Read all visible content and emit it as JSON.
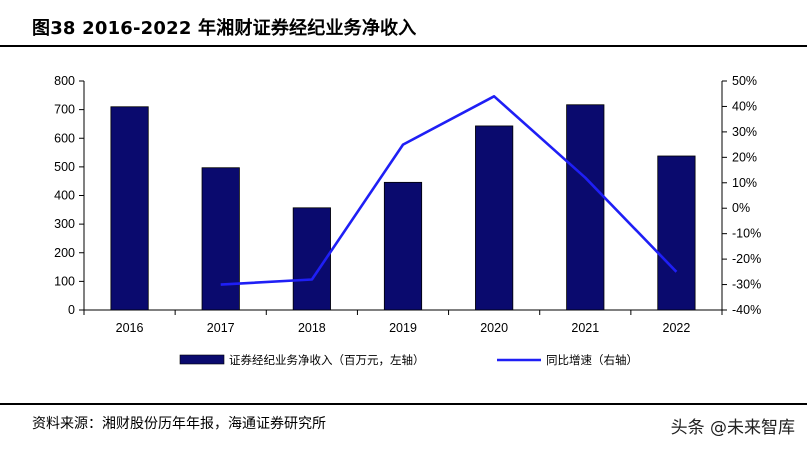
{
  "header": {
    "title": "图38 2016-2022 年湘财证券经纪业务净收入"
  },
  "chart_data": {
    "type": "bar",
    "categories": [
      "2016",
      "2017",
      "2018",
      "2019",
      "2020",
      "2021",
      "2022"
    ],
    "series": [
      {
        "name": "证券经纪业务净收入（百万元，左轴）",
        "type": "bar",
        "axis": "left",
        "color": "#0a0a6e",
        "values": [
          710,
          497,
          357,
          446,
          643,
          717,
          538
        ]
      },
      {
        "name": "同比增速（右轴）",
        "type": "line",
        "axis": "right",
        "color": "#1f1ff5",
        "values": [
          null,
          -30,
          -28,
          25,
          44,
          12,
          -25
        ]
      }
    ],
    "ylim": [
      0,
      800
    ],
    "yticks": [
      "0",
      "100",
      "200",
      "300",
      "400",
      "500",
      "600",
      "700",
      "800"
    ],
    "y2lim": [
      -40,
      50
    ],
    "y2ticks": [
      "-40%",
      "-30%",
      "-20%",
      "-10%",
      "0%",
      "10%",
      "20%",
      "30%",
      "40%",
      "50%"
    ],
    "grid": false,
    "legend_position": "bottom"
  },
  "footer": {
    "source": "资料来源：湘财股份历年年报，海通证券研究所",
    "watermark": "头条 @未来智库"
  }
}
